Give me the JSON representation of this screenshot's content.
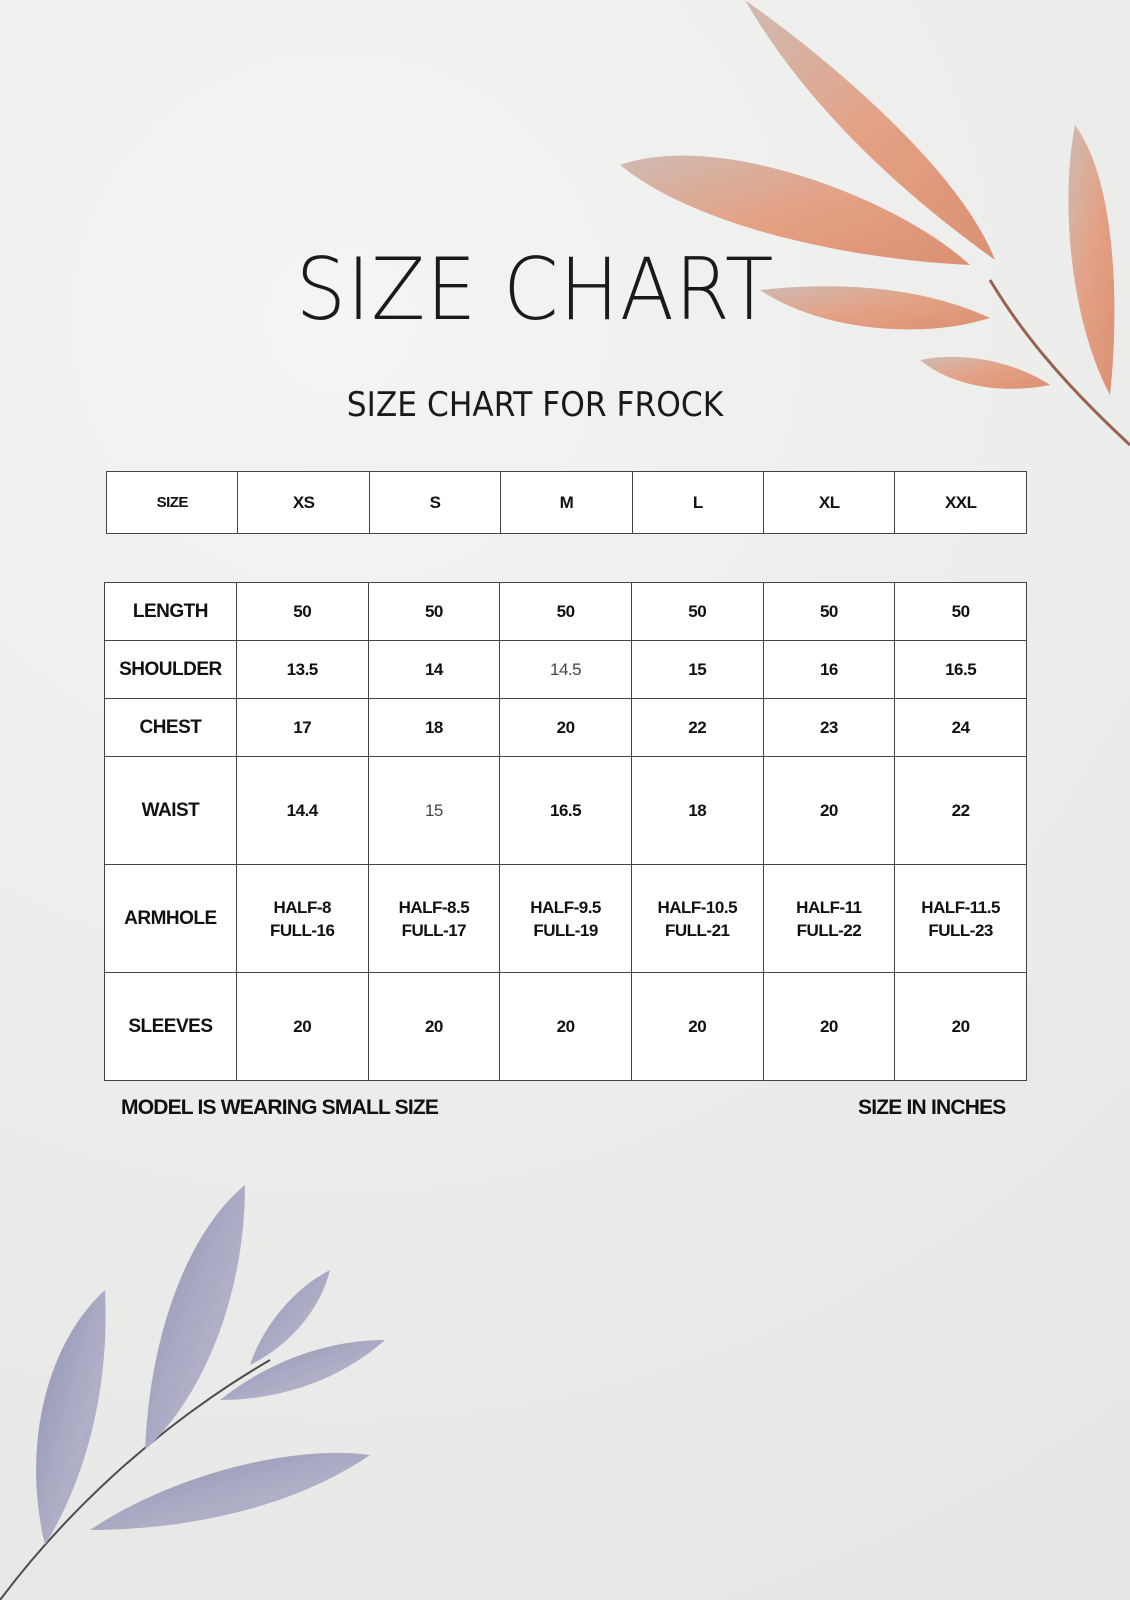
{
  "title": "SIZE CHART",
  "subtitle": "SIZE CHART FOR FROCK",
  "header": {
    "label": "SIZE",
    "sizes": [
      "XS",
      "S",
      "M",
      "L",
      "XL",
      "XXL"
    ]
  },
  "rows": [
    {
      "label": "LENGTH",
      "values": [
        "50",
        "50",
        "50",
        "50",
        "50",
        "50"
      ]
    },
    {
      "label": "SHOULDER",
      "values": [
        "13.5",
        "14",
        "14.5",
        "15",
        "16",
        "16.5"
      ]
    },
    {
      "label": "CHEST",
      "values": [
        "17",
        "18",
        "20",
        "22",
        "23",
        "24"
      ]
    },
    {
      "label": "WAIST",
      "values": [
        "14.4",
        "15",
        "16.5",
        "18",
        "20",
        "22"
      ]
    },
    {
      "label": "ARMHOLE",
      "values": [
        [
          "HALF-8",
          "FULL-16"
        ],
        [
          "HALF-8.5",
          "FULL-17"
        ],
        [
          "HALF-9.5",
          "FULL-19"
        ],
        [
          "HALF-10.5",
          "FULL-21"
        ],
        [
          "HALF-11",
          "FULL-22"
        ],
        [
          "HALF-11.5",
          "FULL-23"
        ]
      ]
    },
    {
      "label": "SLEEVES",
      "values": [
        "20",
        "20",
        "20",
        "20",
        "20",
        "20"
      ]
    }
  ],
  "footer": {
    "left": "MODEL IS WEARING SMALL SIZE",
    "right": "SIZE IN INCHES"
  },
  "colors": {
    "leaf_top": "#e08f6e",
    "leaf_bottom": "#8e93b3",
    "background": "#ededec"
  }
}
